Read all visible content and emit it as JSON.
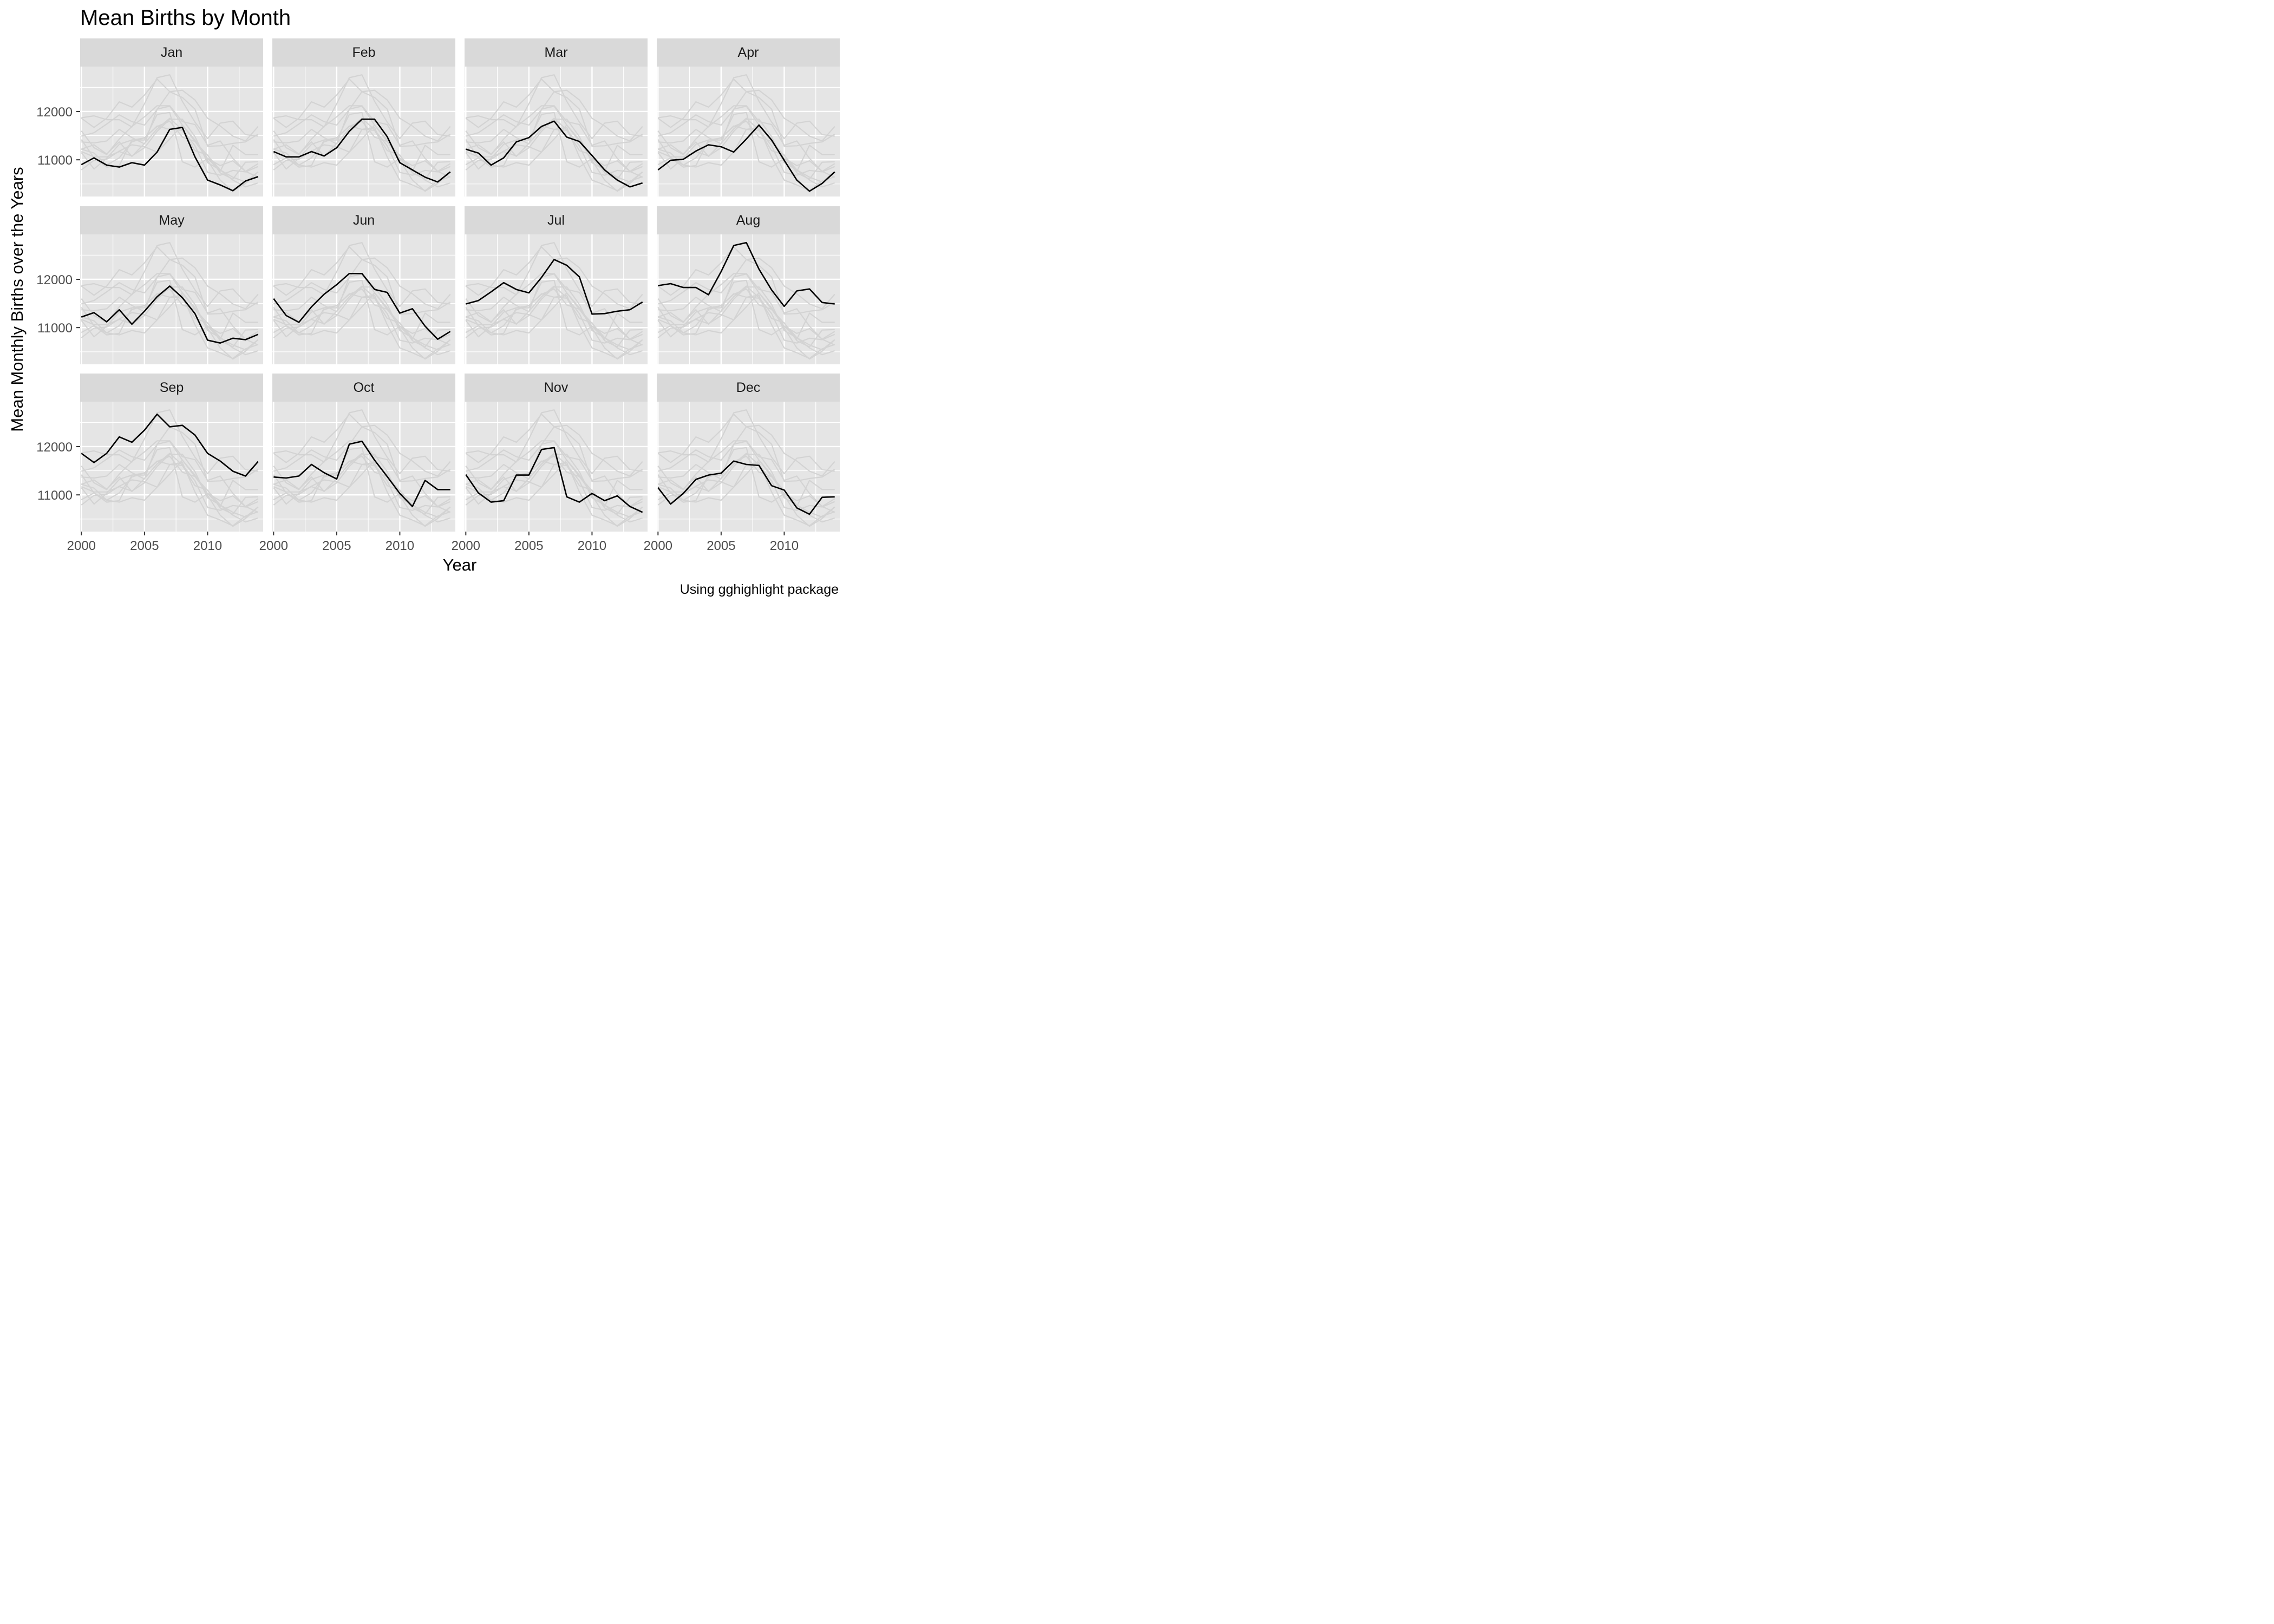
{
  "chart_data": {
    "type": "line",
    "layout": "small-multiples 4x3, one panel per month; the panel month is highlighted in black, all other months drawn in light grey",
    "title": "Mean Births by Month",
    "xlabel": "Year",
    "ylabel": "Mean Monthly Births over the Years",
    "caption": "Using gghighlight package",
    "x": [
      2000,
      2001,
      2002,
      2003,
      2004,
      2005,
      2006,
      2007,
      2008,
      2009,
      2010,
      2011,
      2012,
      2013,
      2014
    ],
    "xlim": [
      1999.9,
      2014.4
    ],
    "ylim": [
      10240,
      12930
    ],
    "x_ticks": [
      2000,
      2005,
      2010
    ],
    "y_ticks": [
      11000,
      12000
    ],
    "y_tick_labels": [
      "11000",
      "12000"
    ],
    "x_minor_ticks": [
      2002.5,
      2007.5,
      2012.5
    ],
    "y_minor_ticks": [
      10500,
      11500,
      12500
    ],
    "grid": true,
    "colors": {
      "highlight": "#000000",
      "context": "#d3d3d3",
      "panel_background": "#e5e5e5",
      "strip_background": "#d9d9d9",
      "grid": "#ffffff"
    },
    "series": [
      {
        "name": "Jan",
        "values": [
          10900,
          11040,
          10890,
          10850,
          10940,
          10890,
          11160,
          11630,
          11670,
          11060,
          10580,
          10480,
          10360,
          10560,
          10650
        ]
      },
      {
        "name": "Feb",
        "values": [
          11170,
          11060,
          11060,
          11170,
          11080,
          11250,
          11590,
          11840,
          11840,
          11480,
          10940,
          10790,
          10640,
          10540,
          10750
        ]
      },
      {
        "name": "Mar",
        "values": [
          11220,
          11140,
          10890,
          11040,
          11370,
          11460,
          11690,
          11800,
          11470,
          11380,
          11090,
          10790,
          10580,
          10440,
          10520
        ]
      },
      {
        "name": "Apr",
        "values": [
          10790,
          10990,
          11010,
          11180,
          11310,
          11270,
          11160,
          11430,
          11720,
          11410,
          10990,
          10580,
          10350,
          10510,
          10750
        ]
      },
      {
        "name": "May",
        "values": [
          11220,
          11310,
          11120,
          11370,
          11070,
          11340,
          11640,
          11860,
          11620,
          11290,
          10740,
          10680,
          10780,
          10750,
          10860
        ]
      },
      {
        "name": "Jun",
        "values": [
          11600,
          11250,
          11110,
          11430,
          11690,
          11890,
          12120,
          12120,
          11790,
          11730,
          11300,
          11390,
          11030,
          10760,
          10920
        ]
      },
      {
        "name": "Jul",
        "values": [
          11490,
          11560,
          11740,
          11930,
          11790,
          11720,
          12040,
          12410,
          12290,
          12050,
          11280,
          11290,
          11340,
          11370,
          11530
        ]
      },
      {
        "name": "Aug",
        "values": [
          11870,
          11910,
          11830,
          11830,
          11680,
          12160,
          12700,
          12760,
          12210,
          11780,
          11440,
          11760,
          11800,
          11520,
          11490
        ]
      },
      {
        "name": "Sep",
        "values": [
          11860,
          11670,
          11860,
          12200,
          12090,
          12340,
          12670,
          12410,
          12440,
          12240,
          11860,
          11700,
          11490,
          11390,
          11690
        ]
      },
      {
        "name": "Oct",
        "values": [
          11370,
          11350,
          11390,
          11630,
          11460,
          11330,
          12050,
          12110,
          11720,
          11380,
          11030,
          10760,
          11300,
          11110,
          11110
        ]
      },
      {
        "name": "Nov",
        "values": [
          11420,
          11040,
          10850,
          10880,
          11410,
          11410,
          11940,
          11980,
          10960,
          10850,
          11030,
          10880,
          10980,
          10760,
          10640
        ]
      },
      {
        "name": "Dec",
        "values": [
          11150,
          10810,
          11030,
          11320,
          11410,
          11450,
          11700,
          11630,
          11610,
          11190,
          11100,
          10730,
          10600,
          10950,
          10960
        ]
      }
    ]
  }
}
